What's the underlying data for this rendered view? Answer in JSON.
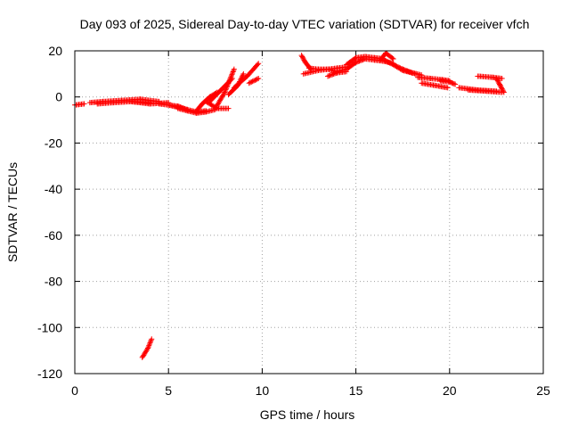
{
  "chart_data": {
    "type": "scatter",
    "title": "Day 093 of 2025, Sidereal Day-to-day VTEC variation (SDTVAR) for receiver vfch",
    "xlabel": "GPS time / hours",
    "ylabel": "SDTVAR / TECUs",
    "xlim": [
      0,
      25
    ],
    "ylim": [
      -120,
      20
    ],
    "xticks": [
      0,
      5,
      10,
      15,
      20,
      25
    ],
    "yticks": [
      -120,
      -100,
      -80,
      -60,
      -40,
      -20,
      0,
      20
    ],
    "grid": true,
    "marker": "+",
    "colors": {
      "series": "#ff0000",
      "axes": "#000000",
      "grid": "#a0a0a0"
    },
    "segments": [
      {
        "name": "arc-01",
        "x": [
          0.0,
          0.5
        ],
        "y": [
          -3.5,
          -3.0
        ]
      },
      {
        "name": "arc-02",
        "x": [
          0.8,
          1.5,
          2.5,
          3.5,
          4.5
        ],
        "y": [
          -2.5,
          -2.0,
          -1.5,
          -1.0,
          -2.0
        ]
      },
      {
        "name": "arc-03",
        "x": [
          1.2,
          2.0,
          3.0,
          4.0
        ],
        "y": [
          -3.0,
          -2.5,
          -2.0,
          -2.5
        ]
      },
      {
        "name": "arc-04",
        "x": [
          3.0,
          4.0,
          5.0
        ],
        "y": [
          -2.0,
          -3.0,
          -2.5
        ]
      },
      {
        "name": "arc-05",
        "x": [
          4.5,
          5.5,
          6.0
        ],
        "y": [
          -3.0,
          -4.0,
          -5.5
        ]
      },
      {
        "name": "arc-06",
        "x": [
          5.0,
          5.5,
          6.0,
          6.5,
          7.0
        ],
        "y": [
          -3.5,
          -4.5,
          -5.5,
          -6.5,
          -6.0
        ]
      },
      {
        "name": "arc-07",
        "x": [
          5.5,
          6.0,
          6.5,
          7.0,
          7.5
        ],
        "y": [
          -5.0,
          -6.0,
          -7.0,
          -6.5,
          -5.5
        ]
      },
      {
        "name": "arc-08",
        "x": [
          6.5,
          6.8,
          7.2,
          7.6
        ],
        "y": [
          -6.0,
          -3.0,
          0.0,
          2.0
        ]
      },
      {
        "name": "arc-09",
        "x": [
          7.0,
          7.6,
          8.2
        ],
        "y": [
          -2.0,
          -5.0,
          -5.0
        ]
      },
      {
        "name": "arc-10",
        "x": [
          7.2,
          7.8,
          8.4
        ],
        "y": [
          -2.0,
          3.0,
          8.0
        ]
      },
      {
        "name": "arc-11",
        "x": [
          7.5,
          8.0,
          8.5
        ],
        "y": [
          -5.0,
          2.0,
          12.0
        ]
      },
      {
        "name": "arc-12",
        "x": [
          8.2,
          8.7,
          9.0
        ],
        "y": [
          1.0,
          5.0,
          10.0
        ]
      },
      {
        "name": "arc-13",
        "x": [
          8.5,
          9.2,
          9.8
        ],
        "y": [
          4.0,
          9.0,
          14.5
        ]
      },
      {
        "name": "arc-14",
        "x": [
          9.3,
          9.8
        ],
        "y": [
          6.0,
          8.0
        ]
      },
      {
        "name": "arc-15",
        "x": [
          3.6,
          3.9,
          4.1
        ],
        "y": [
          -113.0,
          -109.0,
          -105.0
        ]
      },
      {
        "name": "arc-16",
        "x": [
          12.1,
          12.3,
          12.6
        ],
        "y": [
          18.0,
          15.0,
          12.0
        ]
      },
      {
        "name": "arc-17",
        "x": [
          12.2,
          13.0,
          14.0,
          14.5
        ],
        "y": [
          10.0,
          11.5,
          12.5,
          13.0
        ]
      },
      {
        "name": "arc-18",
        "x": [
          12.5,
          13.0,
          13.5,
          14.0,
          14.5,
          15.0,
          15.5,
          16.0,
          16.5,
          17.0
        ],
        "y": [
          12.5,
          12.0,
          12.0,
          11.0,
          12.0,
          15.0,
          16.5,
          16.0,
          15.5,
          14.5
        ]
      },
      {
        "name": "arc-19",
        "x": [
          13.5,
          14.0,
          14.5
        ],
        "y": [
          9.0,
          10.5,
          11.0
        ]
      },
      {
        "name": "arc-20",
        "x": [
          14.5,
          15.0,
          15.5,
          16.0,
          16.5
        ],
        "y": [
          14.0,
          17.0,
          17.5,
          17.0,
          16.5
        ]
      },
      {
        "name": "arc-21",
        "x": [
          16.3,
          16.6,
          17.0
        ],
        "y": [
          16.0,
          19.0,
          16.5
        ]
      },
      {
        "name": "arc-22",
        "x": [
          16.5,
          17.0,
          17.5,
          18.0,
          18.5
        ],
        "y": [
          16.0,
          14.0,
          12.0,
          10.5,
          9.5
        ]
      },
      {
        "name": "arc-23",
        "x": [
          17.0,
          17.5,
          18.2
        ],
        "y": [
          14.0,
          11.5,
          10.0
        ]
      },
      {
        "name": "arc-24",
        "x": [
          18.3,
          19.0,
          19.6,
          20.0
        ],
        "y": [
          8.5,
          8.0,
          7.5,
          7.0
        ]
      },
      {
        "name": "arc-25",
        "x": [
          18.5,
          19.2,
          19.9
        ],
        "y": [
          6.0,
          5.0,
          4.0
        ]
      },
      {
        "name": "arc-26",
        "x": [
          19.5,
          20.0,
          20.3
        ],
        "y": [
          7.0,
          6.5,
          5.5
        ]
      },
      {
        "name": "arc-27",
        "x": [
          20.5,
          21.5,
          22.5
        ],
        "y": [
          4.0,
          3.0,
          2.5
        ]
      },
      {
        "name": "arc-28",
        "x": [
          21.0,
          22.0,
          22.8
        ],
        "y": [
          3.0,
          2.5,
          2.0
        ]
      },
      {
        "name": "arc-29",
        "x": [
          21.5,
          22.3,
          22.8
        ],
        "y": [
          9.0,
          8.5,
          8.0
        ]
      },
      {
        "name": "arc-30",
        "x": [
          22.5,
          22.7,
          22.9
        ],
        "y": [
          8.0,
          5.0,
          2.0
        ]
      }
    ]
  }
}
